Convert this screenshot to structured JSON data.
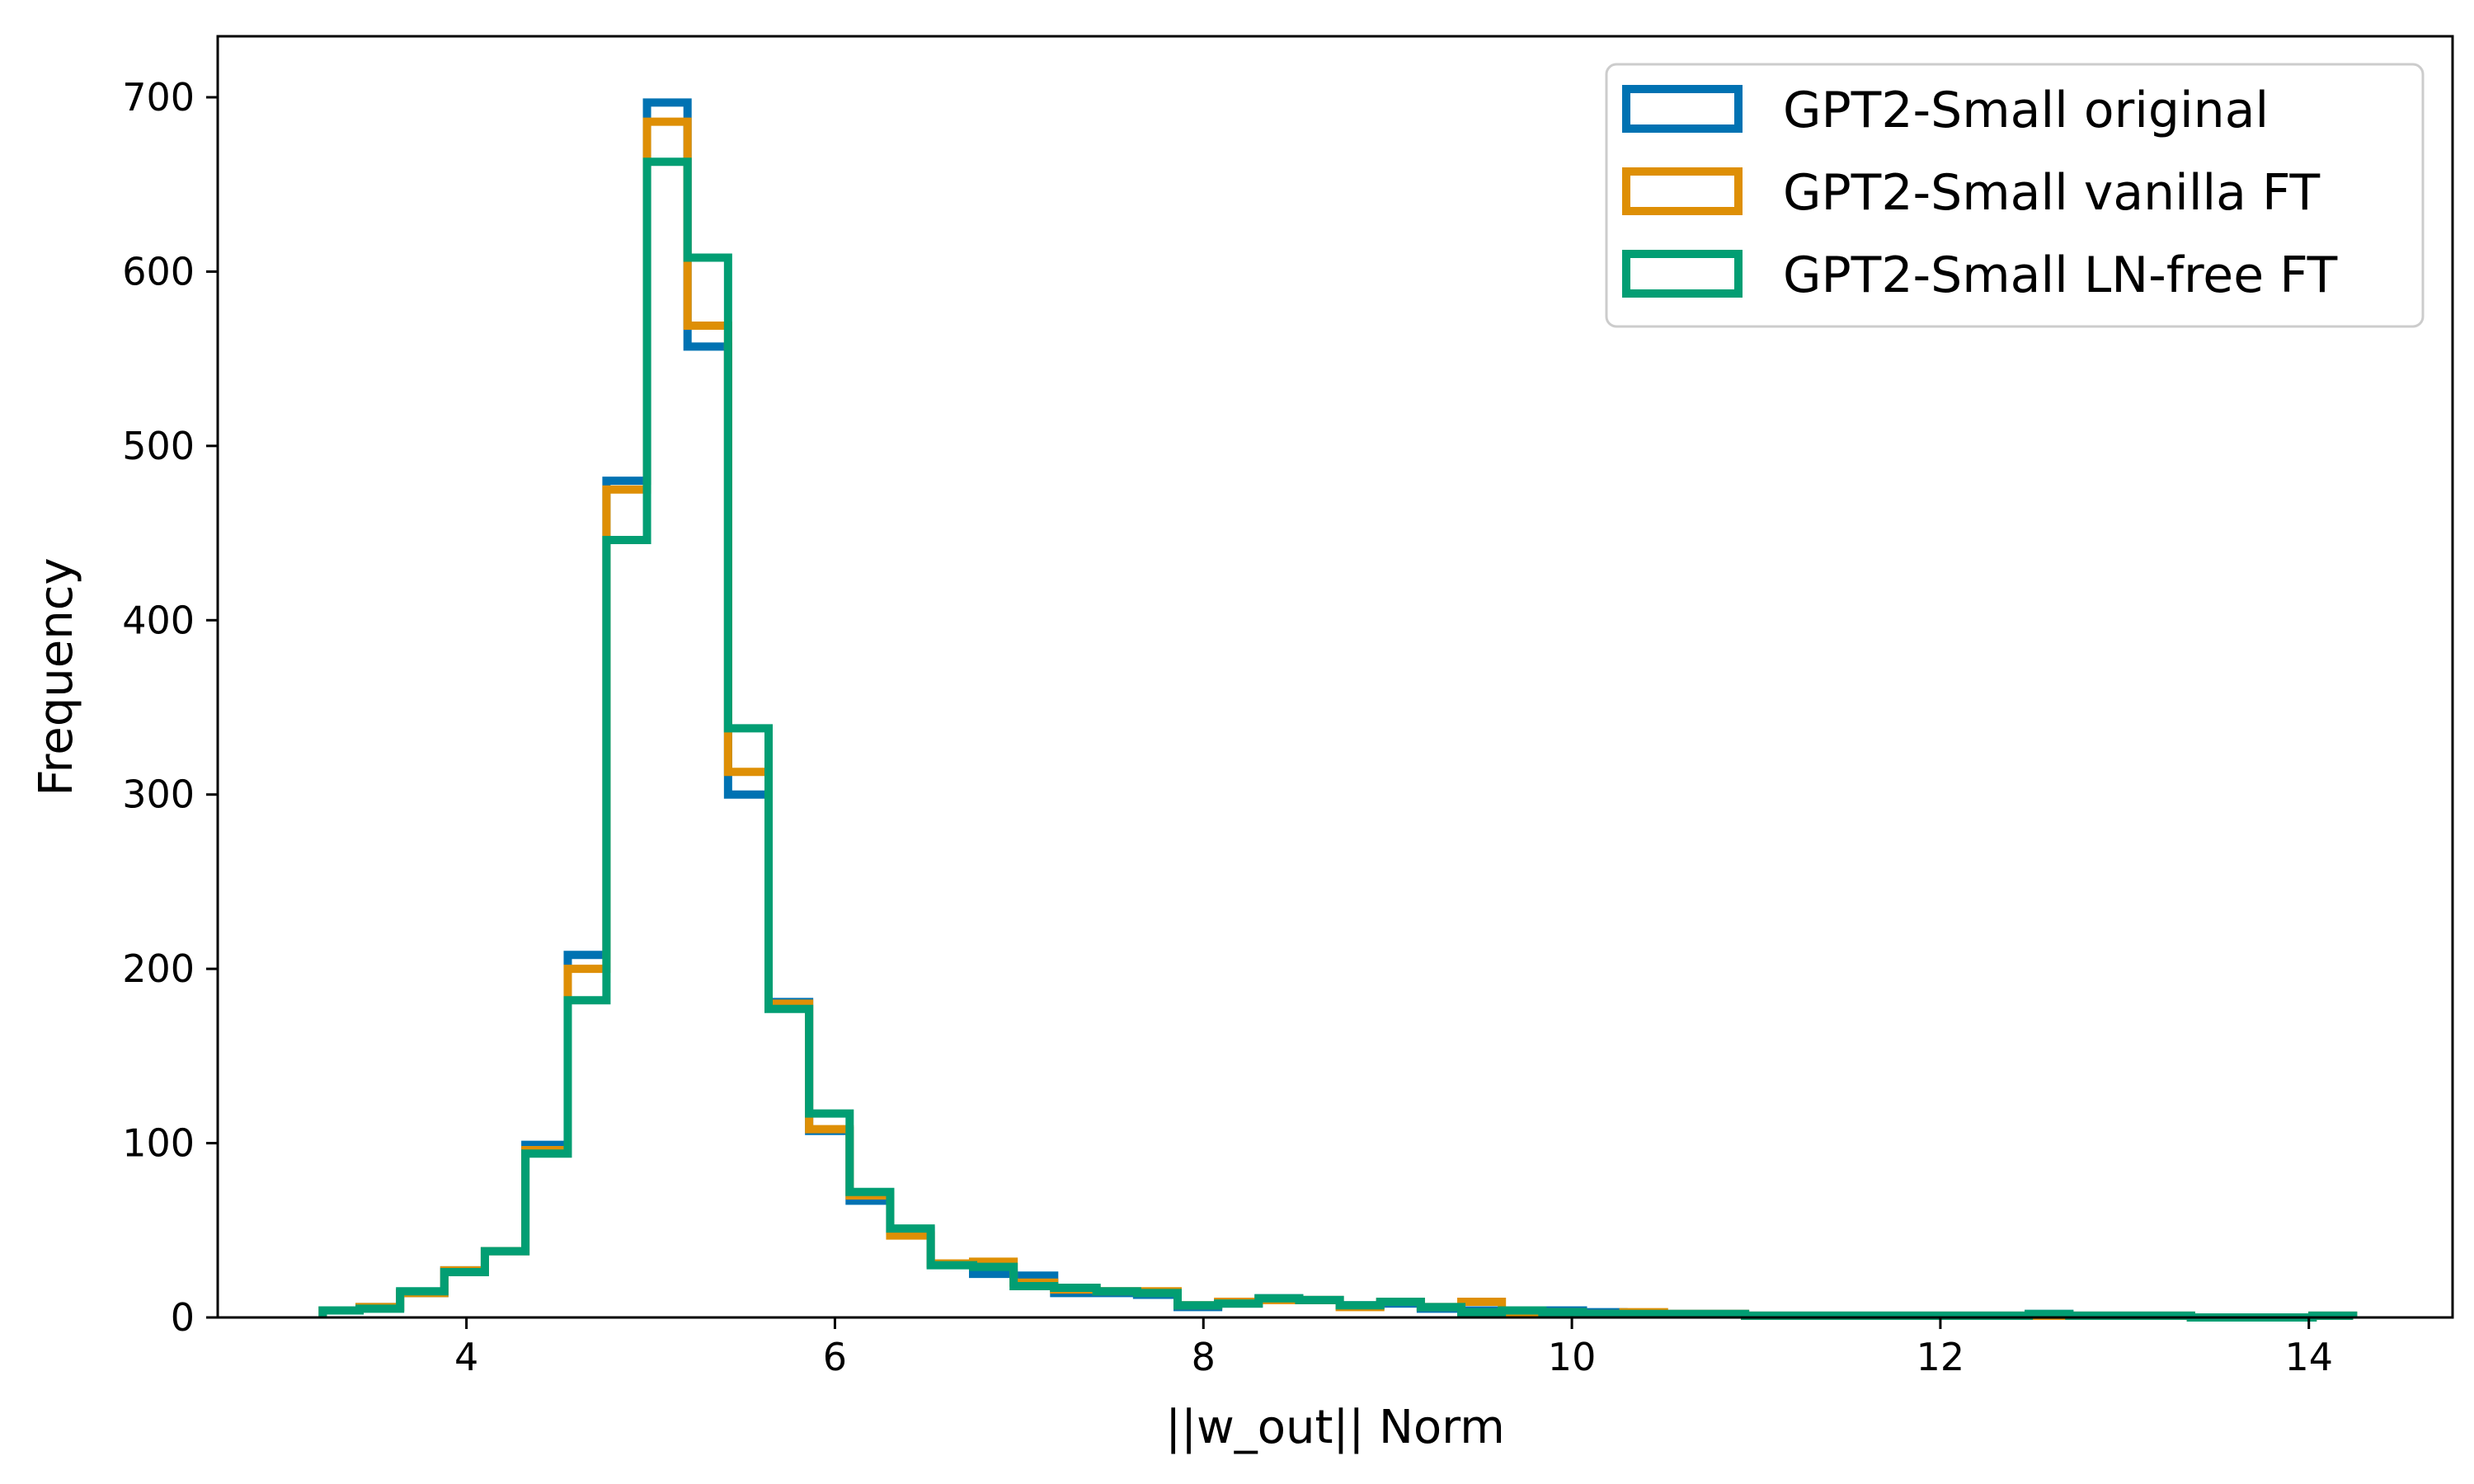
{
  "chart_data": {
    "type": "histogram",
    "title": "",
    "xlabel": "||w_out|| Norm",
    "ylabel": "Frequency",
    "xlim": [
      2.65,
      14.78
    ],
    "ylim": [
      0,
      735
    ],
    "xticks": [
      4,
      6,
      8,
      10,
      12,
      14
    ],
    "yticks": [
      0,
      100,
      200,
      300,
      400,
      500,
      600,
      700
    ],
    "grid": false,
    "legend_position": "top-right",
    "bin_edges": [
      3.22,
      3.42,
      3.64,
      3.88,
      4.1,
      4.32,
      4.55,
      4.76,
      4.98,
      5.2,
      5.42,
      5.64,
      5.86,
      6.08,
      6.3,
      6.52,
      6.75,
      6.97,
      7.19,
      7.42,
      7.64,
      7.86,
      8.08,
      8.3,
      8.52,
      8.74,
      8.96,
      9.18,
      9.4,
      9.62,
      9.84,
      10.06,
      10.28,
      10.5,
      10.72,
      10.94,
      11.16,
      11.38,
      11.6,
      11.82,
      12.04,
      12.26,
      12.48,
      12.7,
      12.92,
      13.14,
      13.36,
      13.58,
      13.8,
      14.02,
      14.24
    ],
    "series": [
      {
        "name": "GPT2-Small original",
        "color": "#0072b2",
        "values": [
          4,
          6,
          14,
          27,
          38,
          99,
          208,
          480,
          697,
          557,
          300,
          181,
          107,
          67,
          50,
          31,
          25,
          24,
          14,
          14,
          13,
          6,
          8,
          11,
          10,
          7,
          8,
          5,
          4,
          3,
          4,
          3,
          2,
          2,
          2,
          1,
          1,
          1,
          1,
          1,
          1,
          1,
          2,
          1,
          1,
          1,
          0,
          0,
          0,
          1
        ]
      },
      {
        "name": "GPT2-Small vanilla FT",
        "color": "#de8f05",
        "values": [
          4,
          6,
          14,
          27,
          38,
          96,
          200,
          475,
          686,
          569,
          313,
          180,
          108,
          70,
          47,
          31,
          32,
          20,
          16,
          15,
          15,
          7,
          9,
          10,
          10,
          6,
          9,
          6,
          9,
          3,
          3,
          2,
          3,
          2,
          2,
          1,
          1,
          1,
          1,
          1,
          1,
          1,
          1,
          1,
          1,
          1,
          0,
          0,
          0,
          1
        ]
      },
      {
        "name": "GPT2-Small LN-free FT",
        "color": "#029e73",
        "values": [
          4,
          5,
          15,
          26,
          38,
          94,
          182,
          446,
          663,
          608,
          338,
          177,
          117,
          72,
          51,
          30,
          29,
          18,
          17,
          15,
          14,
          7,
          8,
          11,
          10,
          7,
          9,
          6,
          3,
          4,
          3,
          2,
          2,
          2,
          2,
          1,
          1,
          1,
          1,
          1,
          1,
          1,
          2,
          1,
          1,
          1,
          0,
          0,
          0,
          1
        ]
      }
    ]
  }
}
